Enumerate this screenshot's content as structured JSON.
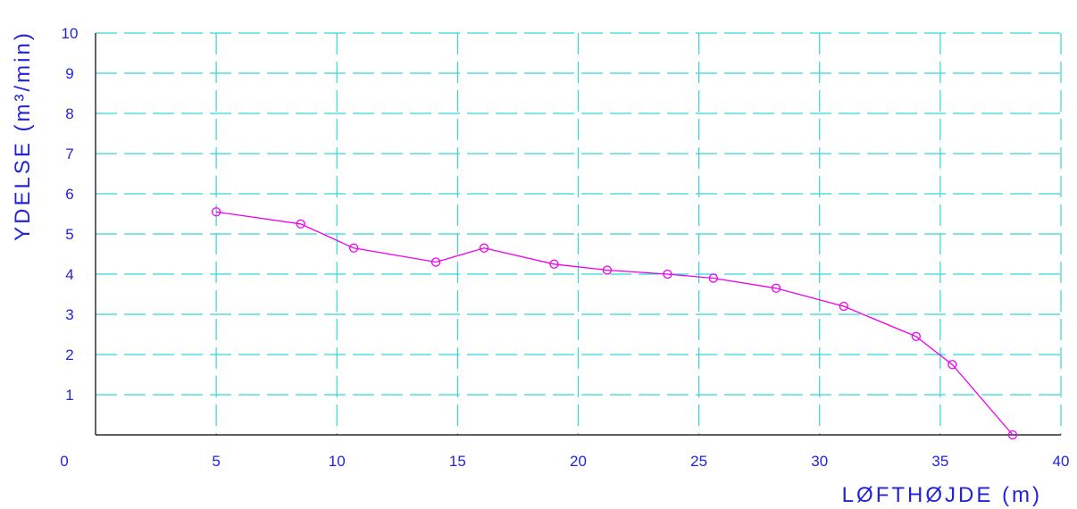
{
  "chart_data": {
    "type": "line",
    "xlabel": "LØFTHØJDE (m)",
    "ylabel": "YDELSE (m³/min)",
    "xlim": [
      0,
      40
    ],
    "ylim": [
      0,
      10
    ],
    "x_ticks": [
      "5",
      "10",
      "15",
      "20",
      "25",
      "30",
      "35",
      "40"
    ],
    "y_ticks": [
      "1",
      "2",
      "3",
      "4",
      "5",
      "6",
      "7",
      "8",
      "9",
      "10"
    ],
    "origin_label": "0",
    "grid": true,
    "series": [
      {
        "x": [
          5.0,
          8.5,
          10.7,
          14.1,
          16.1,
          19.0,
          21.2,
          23.7,
          25.6,
          28.2,
          31.0,
          34.0,
          35.5,
          38.0
        ],
        "y": [
          5.55,
          5.25,
          4.65,
          4.3,
          4.65,
          4.25,
          4.1,
          4.0,
          3.9,
          3.65,
          3.2,
          2.45,
          1.75,
          0.0
        ]
      }
    ],
    "colors": {
      "grid": "#33d6d6",
      "axis": "#000000",
      "text": "#2323d8",
      "line": "#ee00ee"
    }
  }
}
